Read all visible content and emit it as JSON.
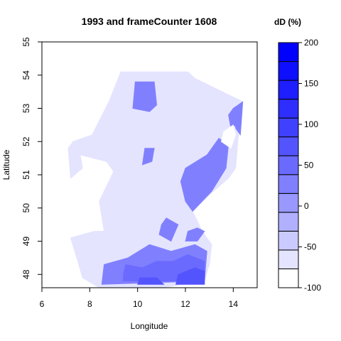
{
  "title": "1993 and frameCounter 1608",
  "xlabel": "Longitude",
  "ylabel": "Latitude",
  "x_axis": {
    "min": 6,
    "max": 15,
    "ticks": [
      "6",
      "8",
      "10",
      "12",
      "14"
    ]
  },
  "y_axis": {
    "min": 47.6,
    "max": 55,
    "ticks": [
      "48",
      "49",
      "50",
      "51",
      "52",
      "53",
      "54",
      "55"
    ]
  },
  "colorbar": {
    "title": "dD (%)",
    "min": -100,
    "max": 200,
    "ticks": [
      "-100",
      "-50",
      "0",
      "50",
      "100",
      "150",
      "200"
    ],
    "levels": [
      -100,
      -75,
      -50,
      -25,
      0,
      25,
      50,
      75,
      100,
      125,
      150,
      175,
      200
    ],
    "colors": [
      "#ffffff",
      "#e4e4ff",
      "#cacaff",
      "#b0b0ff",
      "#9898ff",
      "#8080ff",
      "#6a6aff",
      "#5454ff",
      "#4040ff",
      "#2e2eff",
      "#1e1eff",
      "#0f0fff",
      "#0000ff"
    ]
  },
  "map": {
    "base_color": "#e4e4ff",
    "region_outline": [
      [
        9.3,
        54.1
      ],
      [
        12.1,
        54.1
      ],
      [
        12.4,
        53.9
      ],
      [
        14.4,
        53.2
      ],
      [
        14.2,
        52.1
      ],
      [
        14.1,
        51.2
      ],
      [
        13.8,
        50.9
      ],
      [
        13.0,
        50.4
      ],
      [
        12.3,
        49.9
      ],
      [
        12.7,
        49.3
      ],
      [
        13.1,
        48.9
      ],
      [
        13.0,
        48.3
      ],
      [
        12.8,
        47.8
      ],
      [
        11.0,
        47.6
      ],
      [
        8.4,
        47.6
      ],
      [
        7.7,
        47.9
      ],
      [
        7.5,
        48.4
      ],
      [
        7.2,
        49.1
      ],
      [
        8.2,
        49.3
      ],
      [
        8.6,
        49.3
      ],
      [
        8.4,
        50.2
      ],
      [
        8.6,
        50.5
      ],
      [
        9.0,
        51.1
      ],
      [
        8.7,
        51.4
      ],
      [
        7.6,
        51.6
      ],
      [
        7.7,
        51.2
      ],
      [
        7.2,
        50.9
      ],
      [
        7.1,
        51.8
      ],
      [
        7.3,
        52.0
      ],
      [
        8.1,
        52.2
      ],
      [
        8.8,
        53.2
      ]
    ],
    "shaded_regions": [
      {
        "level": 25,
        "points": [
          [
            9.8,
            53.0
          ],
          [
            9.9,
            53.8
          ],
          [
            10.7,
            53.8
          ],
          [
            10.8,
            53.1
          ],
          [
            10.5,
            52.9
          ]
        ]
      },
      {
        "level": 25,
        "points": [
          [
            10.3,
            51.8
          ],
          [
            10.7,
            51.8
          ],
          [
            10.6,
            51.4
          ],
          [
            10.2,
            51.3
          ]
        ]
      },
      {
        "level": 25,
        "points": [
          [
            13.8,
            52.8
          ],
          [
            14.0,
            53.0
          ],
          [
            14.1,
            52.5
          ],
          [
            13.9,
            52.4
          ]
        ]
      },
      {
        "level": 25,
        "points": [
          [
            14.0,
            53.0
          ],
          [
            14.4,
            53.2
          ],
          [
            14.3,
            52.2
          ],
          [
            14.1,
            52.4
          ]
        ]
      },
      {
        "level": 25,
        "points": [
          [
            11.0,
            49.5
          ],
          [
            11.2,
            49.7
          ],
          [
            11.7,
            49.5
          ],
          [
            11.4,
            49.0
          ],
          [
            10.9,
            49.2
          ]
        ]
      },
      {
        "level": 25,
        "points": [
          [
            12.1,
            49.3
          ],
          [
            12.5,
            49.4
          ],
          [
            12.8,
            49.3
          ],
          [
            12.5,
            49.0
          ],
          [
            12.0,
            49.0
          ]
        ]
      },
      {
        "level": 25,
        "points": [
          [
            12.0,
            51.2
          ],
          [
            12.9,
            51.6
          ],
          [
            13.4,
            52.1
          ],
          [
            13.8,
            51.9
          ],
          [
            13.7,
            51.2
          ],
          [
            13.1,
            50.5
          ],
          [
            12.3,
            49.9
          ],
          [
            12.0,
            50.2
          ],
          [
            11.8,
            50.8
          ]
        ]
      },
      {
        "level": 25,
        "points": [
          [
            8.5,
            47.7
          ],
          [
            8.6,
            48.3
          ],
          [
            9.6,
            48.5
          ],
          [
            10.5,
            48.9
          ],
          [
            11.4,
            48.7
          ],
          [
            12.4,
            48.9
          ],
          [
            12.9,
            48.7
          ],
          [
            12.8,
            47.8
          ]
        ]
      },
      {
        "level": 50,
        "points": [
          [
            9.4,
            48.0
          ],
          [
            9.5,
            48.3
          ],
          [
            10.2,
            48.2
          ],
          [
            10.8,
            48.4
          ],
          [
            11.5,
            48.4
          ],
          [
            12.1,
            48.6
          ],
          [
            12.8,
            48.4
          ],
          [
            12.8,
            47.8
          ],
          [
            9.4,
            47.8
          ]
        ]
      },
      {
        "level": 75,
        "points": [
          [
            11.6,
            47.7
          ],
          [
            11.7,
            48.0
          ],
          [
            12.4,
            48.2
          ],
          [
            12.8,
            48.1
          ],
          [
            12.8,
            47.7
          ]
        ]
      },
      {
        "level": 75,
        "points": [
          [
            10.0,
            47.7
          ],
          [
            10.1,
            47.9
          ],
          [
            10.8,
            47.9
          ],
          [
            11.1,
            47.7
          ]
        ]
      }
    ],
    "holes": [
      {
        "points": [
          [
            13.6,
            52.3
          ],
          [
            14.0,
            52.5
          ],
          [
            14.1,
            52.2
          ],
          [
            13.9,
            51.8
          ],
          [
            13.5,
            52.0
          ]
        ]
      },
      {
        "points": [
          [
            13.6,
            50.5
          ],
          [
            13.8,
            50.8
          ],
          [
            14.1,
            50.9
          ],
          [
            13.9,
            50.4
          ]
        ]
      }
    ]
  }
}
